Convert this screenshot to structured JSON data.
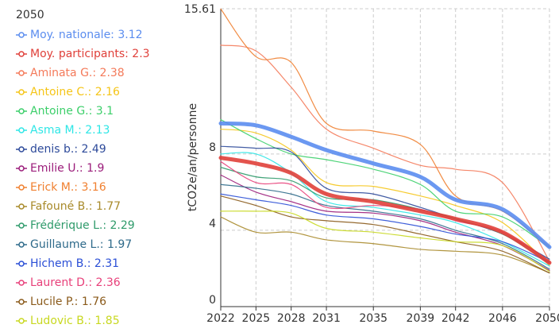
{
  "chart_data": {
    "type": "line",
    "legend_title": "2050",
    "y_label": "tCO2e/an/personne",
    "x": [
      2022,
      2025,
      2028,
      2031,
      2035,
      2039,
      2042,
      2046,
      2050
    ],
    "xlim": [
      2022,
      2050
    ],
    "xticks": [
      2022,
      2025,
      2028,
      2031,
      2035,
      2039,
      2042,
      2046,
      2050
    ],
    "ylim": [
      0,
      15.61
    ],
    "yticks": [
      0,
      4,
      8,
      15.61
    ],
    "grid": true,
    "legend": "left",
    "series": [
      {
        "name": "Moy. nationale: 3.12",
        "color": "#5b8def",
        "line_width": 5,
        "values": [
          9.6,
          9.5,
          8.9,
          8.2,
          7.5,
          6.8,
          5.6,
          5.1,
          3.12
        ]
      },
      {
        "name": "Moy. participants: 2.3",
        "color": "#e0403a",
        "line_width": 5,
        "values": [
          7.8,
          7.5,
          7.0,
          5.9,
          5.5,
          5.0,
          4.6,
          3.9,
          2.3
        ]
      },
      {
        "name": "Aminata G.: 2.38",
        "color": "#f47a5a",
        "line_width": 1.2,
        "values": [
          13.7,
          13.4,
          11.5,
          9.3,
          8.3,
          7.4,
          7.2,
          6.5,
          2.38
        ]
      },
      {
        "name": "Antoine C.: 2.16",
        "color": "#f5c518",
        "line_width": 1.2,
        "values": [
          9.3,
          9.1,
          8.2,
          6.5,
          6.3,
          5.8,
          5.3,
          4.4,
          2.16
        ]
      },
      {
        "name": "Antoine G.: 3.1",
        "color": "#3ccf6a",
        "line_width": 1.2,
        "values": [
          9.8,
          8.8,
          8.0,
          7.7,
          7.2,
          6.4,
          5.0,
          4.7,
          3.1
        ]
      },
      {
        "name": "Asma M.: 2.13",
        "color": "#2ee6e6",
        "line_width": 1.2,
        "values": [
          8.0,
          8.0,
          7.0,
          5.5,
          5.2,
          4.8,
          4.4,
          3.4,
          2.13
        ]
      },
      {
        "name": "denis b.: 2.49",
        "color": "#2d4a9a",
        "line_width": 1.2,
        "values": [
          8.4,
          8.3,
          8.1,
          6.2,
          5.9,
          5.2,
          4.6,
          3.8,
          2.49
        ]
      },
      {
        "name": "Emilie U.: 1.9",
        "color": "#9b1c7a",
        "line_width": 1.2,
        "values": [
          6.9,
          6.0,
          5.5,
          5.0,
          4.9,
          4.5,
          3.9,
          3.2,
          1.9
        ]
      },
      {
        "name": "Erick M.: 3.16",
        "color": "#f08030",
        "line_width": 1.2,
        "values": [
          15.6,
          13.1,
          12.8,
          9.6,
          9.2,
          8.5,
          5.8,
          5.0,
          3.16
        ]
      },
      {
        "name": "Fafouné B.: 1.77",
        "color": "#a88a2a",
        "line_width": 1.2,
        "values": [
          4.7,
          3.9,
          3.9,
          3.5,
          3.3,
          3.0,
          2.9,
          2.7,
          1.77
        ]
      },
      {
        "name": "Frédérique L.: 2.29",
        "color": "#2e9a6a",
        "line_width": 1.2,
        "values": [
          7.3,
          6.8,
          6.6,
          5.7,
          5.6,
          5.1,
          4.6,
          3.8,
          2.29
        ]
      },
      {
        "name": "Guillaume L.: 1.97",
        "color": "#2e6a8a",
        "line_width": 1.2,
        "values": [
          6.4,
          6.2,
          5.9,
          5.3,
          5.0,
          4.6,
          4.0,
          3.3,
          1.97
        ]
      },
      {
        "name": "Hichem B.: 2.31",
        "color": "#2b4fd6",
        "line_width": 1.2,
        "values": [
          5.9,
          5.6,
          5.3,
          4.8,
          4.6,
          4.2,
          3.8,
          3.4,
          2.31
        ]
      },
      {
        "name": "Laurent D.: 2.36",
        "color": "#e8407a",
        "line_width": 1.2,
        "values": [
          7.6,
          6.5,
          6.4,
          5.2,
          5.3,
          5.1,
          4.5,
          3.9,
          2.36
        ]
      },
      {
        "name": "Lucile P.: 1.76",
        "color": "#8a5a1a",
        "line_width": 1.2,
        "values": [
          5.8,
          5.3,
          4.7,
          4.5,
          4.3,
          3.8,
          3.4,
          2.9,
          1.76
        ]
      },
      {
        "name": "Ludovic B.: 1.85",
        "color": "#c8d820",
        "line_width": 1.2,
        "values": [
          5.0,
          5.0,
          4.9,
          4.1,
          3.9,
          3.6,
          3.4,
          3.2,
          1.85
        ]
      }
    ]
  }
}
